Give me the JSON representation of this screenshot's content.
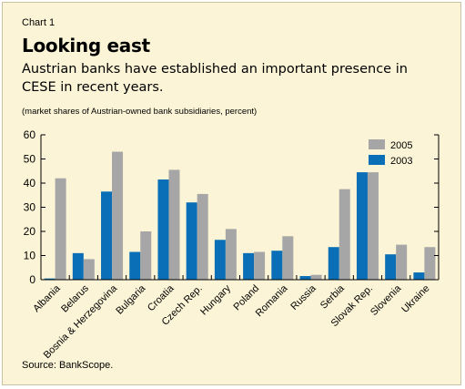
{
  "header": {
    "label": "Chart 1",
    "title": "Looking east",
    "subtitle": "Austrian banks have established an important presence in CESE in recent years.",
    "note": "(market shares of Austrian-owned bank subsidiaries, percent)"
  },
  "footer": {
    "source": "Source: BankScope."
  },
  "colors": {
    "background": "#fbf4d6",
    "series_2005": "#a6a6a6",
    "series_2003": "#0a6fb6",
    "axis": "#000000"
  },
  "chart_data": {
    "type": "bar",
    "categories": [
      "Albania",
      "Belarus",
      "Bosnia & Herzegovina",
      "Bulgaria",
      "Croatia",
      "Czech Rep.",
      "Hungary",
      "Poland",
      "Romania",
      "Russia",
      "Serbia",
      "Slovak Rep.",
      "Slovenia",
      "Ukraine"
    ],
    "series": [
      {
        "name": "2003",
        "values": [
          0.5,
          11,
          36.5,
          11.5,
          41.5,
          32,
          16.5,
          11,
          12,
          1.5,
          13.5,
          44.5,
          10.5,
          3
        ]
      },
      {
        "name": "2005",
        "values": [
          42,
          8.5,
          53,
          20,
          45.5,
          35.5,
          21,
          11.5,
          18,
          2,
          37.5,
          44.5,
          14.5,
          13.5
        ]
      }
    ],
    "ylim": [
      0,
      60
    ],
    "yticks": [
      0,
      10,
      20,
      30,
      40,
      50,
      60
    ],
    "legend": [
      "2005",
      "2003"
    ],
    "legend_position": "top-right",
    "grid": false
  }
}
